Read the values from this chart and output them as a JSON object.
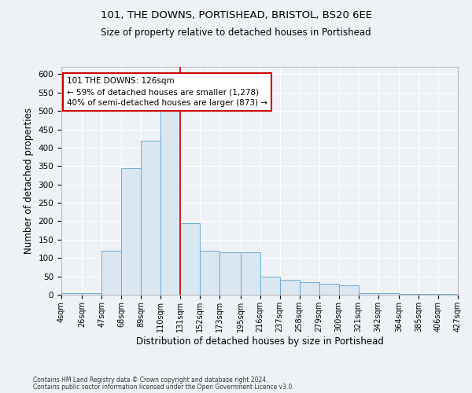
{
  "title1": "101, THE DOWNS, PORTISHEAD, BRISTOL, BS20 6EE",
  "title2": "Size of property relative to detached houses in Portishead",
  "xlabel": "Distribution of detached houses by size in Portishead",
  "ylabel": "Number of detached properties",
  "annotation_line1": "101 THE DOWNS: 126sqm",
  "annotation_line2": "← 59% of detached houses are smaller (1,278)",
  "annotation_line3": "40% of semi-detached houses are larger (873) →",
  "footer1": "Contains HM Land Registry data © Crown copyright and database right 2024.",
  "footer2": "Contains public sector information licensed under the Open Government Licence v3.0.",
  "bar_color": "#dae6f0",
  "bar_edge_color": "#6aaed6",
  "vertical_line_color": "#cc0000",
  "vertical_line_x": 131,
  "background_color": "#eef2f7",
  "bins": [
    4,
    26,
    47,
    68,
    89,
    110,
    131,
    152,
    173,
    195,
    216,
    237,
    258,
    279,
    300,
    321,
    342,
    364,
    385,
    406,
    427
  ],
  "counts": [
    5,
    5,
    120,
    345,
    420,
    530,
    195,
    120,
    115,
    115,
    50,
    40,
    35,
    30,
    25,
    5,
    5,
    2,
    2,
    2
  ],
  "ylim": [
    0,
    620
  ],
  "yticks": [
    0,
    50,
    100,
    150,
    200,
    250,
    300,
    350,
    400,
    450,
    500,
    550,
    600
  ],
  "x_tick_labels": [
    "4sqm",
    "26sqm",
    "47sqm",
    "68sqm",
    "89sqm",
    "110sqm",
    "131sqm",
    "152sqm",
    "173sqm",
    "195sqm",
    "216sqm",
    "237sqm",
    "258sqm",
    "279sqm",
    "300sqm",
    "321sqm",
    "342sqm",
    "364sqm",
    "385sqm",
    "406sqm",
    "427sqm"
  ]
}
